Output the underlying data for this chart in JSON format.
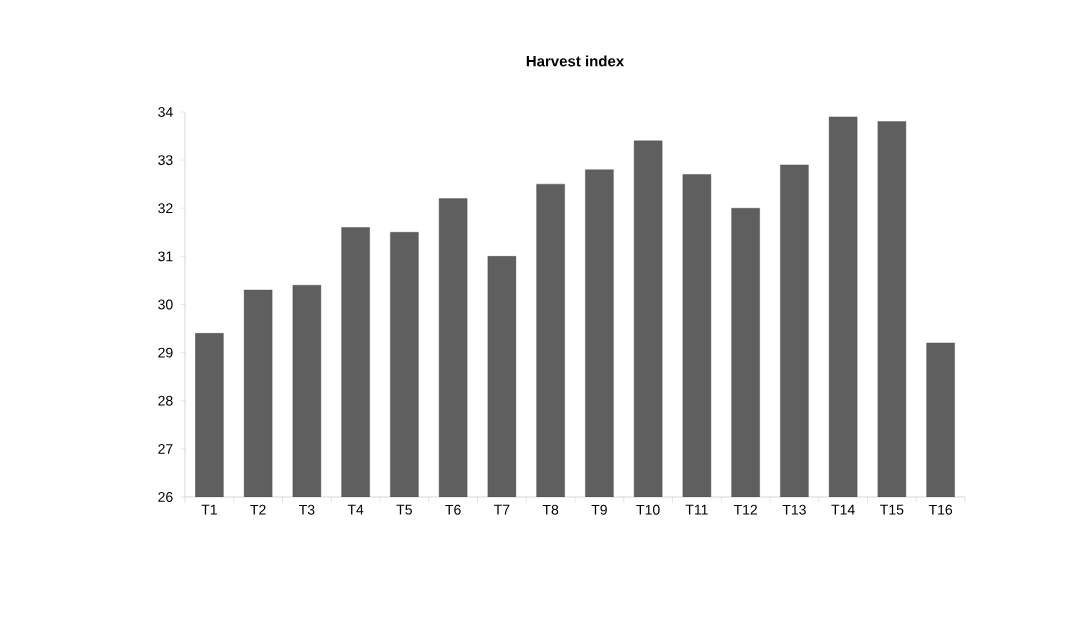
{
  "chart_data": {
    "type": "bar",
    "title": "Harvest index",
    "categories": [
      "T1",
      "T2",
      "T3",
      "T4",
      "T5",
      "T6",
      "T7",
      "T8",
      "T9",
      "T10",
      "T11",
      "T12",
      "T13",
      "T14",
      "T15",
      "T16"
    ],
    "values": [
      29.4,
      30.3,
      30.4,
      31.6,
      31.5,
      32.2,
      31.0,
      32.5,
      32.8,
      33.4,
      32.7,
      32.0,
      32.9,
      33.9,
      33.8,
      29.2
    ],
    "color": "#5f5f5f",
    "ylim": [
      26,
      34
    ],
    "yticks": [
      26,
      27,
      28,
      29,
      30,
      31,
      32,
      33,
      34
    ],
    "grid": false
  }
}
